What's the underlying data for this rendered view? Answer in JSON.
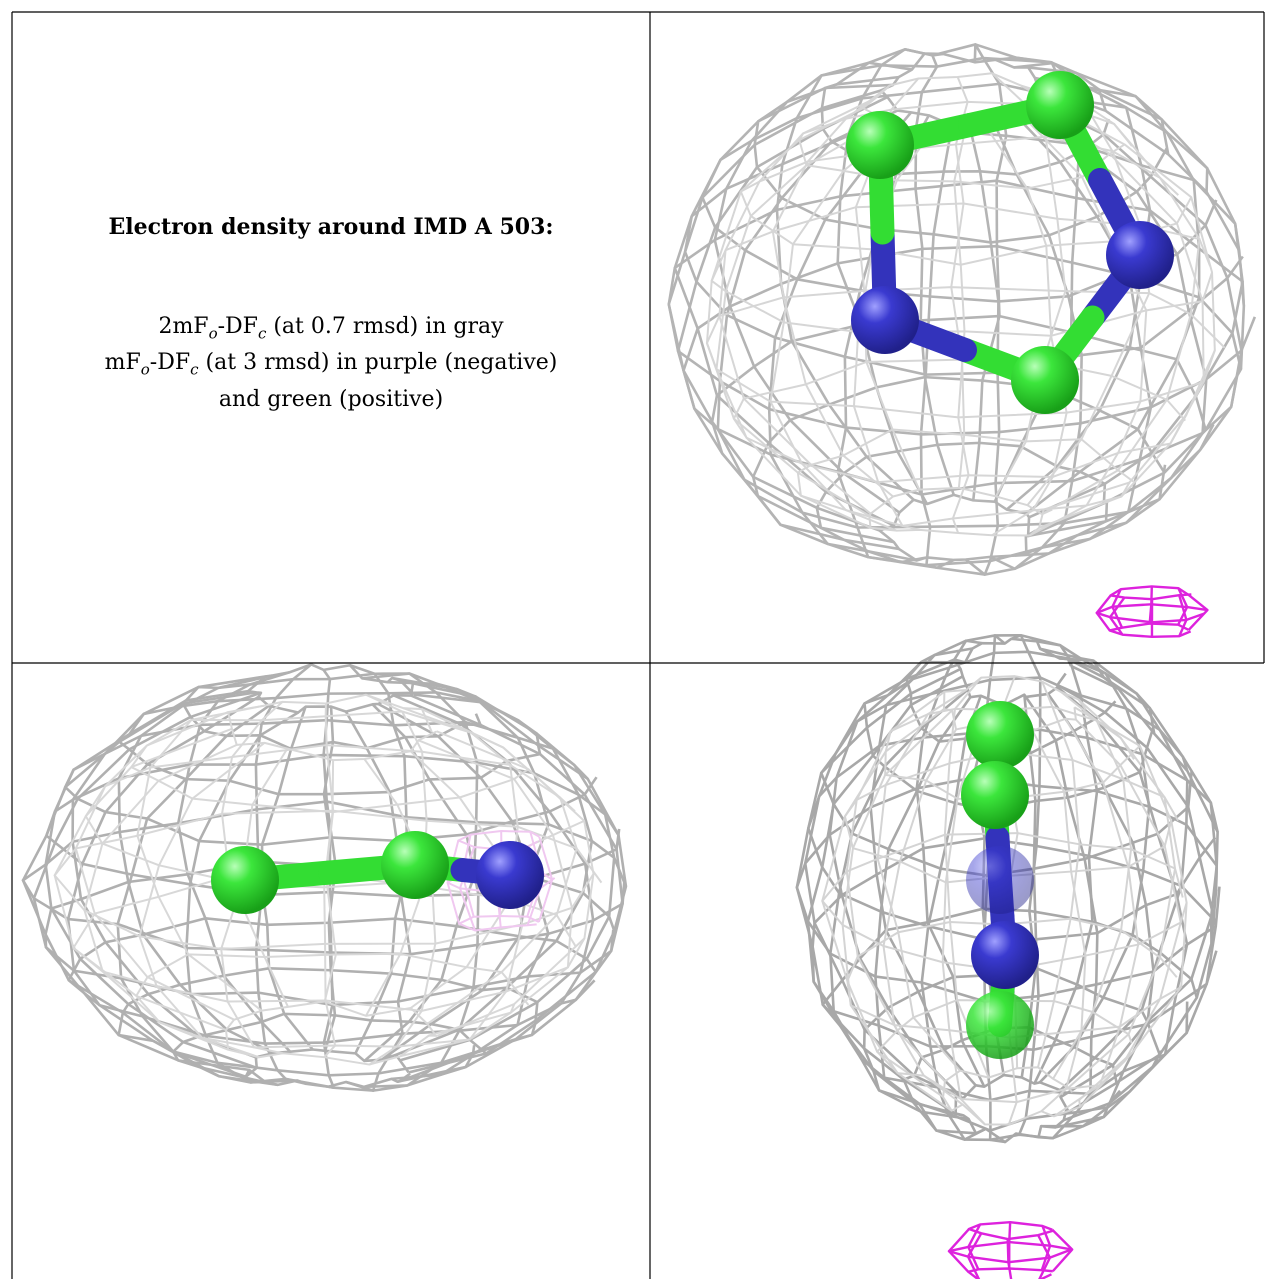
{
  "caption": {
    "title": "Electron density around IMD A 503:",
    "lines": [
      [
        {
          "text": "2mF"
        },
        {
          "text": "o",
          "sub": true
        },
        {
          "text": "-DF"
        },
        {
          "text": "c",
          "sub": true
        },
        {
          "text": " (at 0.7 rmsd) in gray"
        }
      ],
      [
        {
          "text": "mF"
        },
        {
          "text": "o",
          "sub": true
        },
        {
          "text": "-DF"
        },
        {
          "text": "c",
          "sub": true
        },
        {
          "text": " (at 3 rmsd) in purple (negative)"
        }
      ],
      [
        {
          "text": "and green (positive)"
        }
      ]
    ]
  }
}
